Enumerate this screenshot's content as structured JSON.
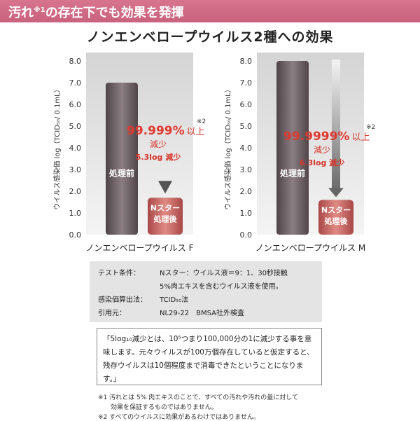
{
  "header": {
    "text_before": "汚れ",
    "sup": "※1",
    "text_after": "の存在下でも効果を発揮"
  },
  "title": "ノンエンベロープウイルス2種への効果",
  "colors": {
    "header": "#cf6a85",
    "before_bar": "#6f6569",
    "after_bar": "#c55a5a",
    "highlight": "#e0392f"
  },
  "chart_data": [
    {
      "type": "bar",
      "virus": "ノンエンベロープウイルス F",
      "ylabel": "ウイルス感染価 log（TCID₅₀/ 0.1mL）",
      "ylim": [
        0,
        8
      ],
      "yticks": [
        "0.0",
        "1.0",
        "2.0",
        "3.0",
        "4.0",
        "5.0",
        "6.0",
        "7.0",
        "8.0"
      ],
      "bars": [
        {
          "label": "処理前",
          "value": 7.0
        },
        {
          "label": "Nスター 処理後",
          "value": 1.7
        }
      ],
      "annotation": {
        "percent": "99.999%",
        "suffix": "以上",
        "note": "※2",
        "line2": "減少",
        "line3": "5.3log 減少"
      }
    },
    {
      "type": "bar",
      "virus": "ノンエンベロープウイルス M",
      "ylabel": "ウイルス感染価 log（TCID₅₀/ 0.1mL）",
      "ylim": [
        0,
        8
      ],
      "yticks": [
        "0.0",
        "1.0",
        "2.0",
        "3.0",
        "4.0",
        "5.0",
        "6.0",
        "7.0",
        "8.0"
      ],
      "bars": [
        {
          "label": "処理前",
          "value": 8.0
        },
        {
          "label": "Nスター 処理後",
          "value": 1.6
        }
      ],
      "annotation": {
        "percent": "99.9999%",
        "suffix": "以上",
        "note": "※2",
        "line2": "減少",
        "line3": "6.3log 減少"
      }
    }
  ],
  "conditions": [
    {
      "k": "テスト条件：",
      "v": "Nスター：ウイルス液＝9：1、30秒接触"
    },
    {
      "k": "",
      "v": "5%肉エキスを含むウイルス液を使用。"
    },
    {
      "k": "感染価算出法：",
      "v": "TCID₅₀法"
    },
    {
      "k": "引用元：",
      "v": "NL29-22　BMSA社外検査"
    }
  ],
  "note": "「5log₁₀減少とは、10⁵つまり100,000分の1に減少する事を意味します。元々ウイルスが100万個存在していると仮定すると、残存ウイルスは10個程度まで消毒できたということになります。」",
  "footnotes": [
    "※1 汚れとは 5% 肉エキスのことで、すべての汚れや汚れの量に対して",
    "　　効果を保証するものではありません。",
    "※2 すべてのウイルスに効果があるわけではありません。"
  ]
}
